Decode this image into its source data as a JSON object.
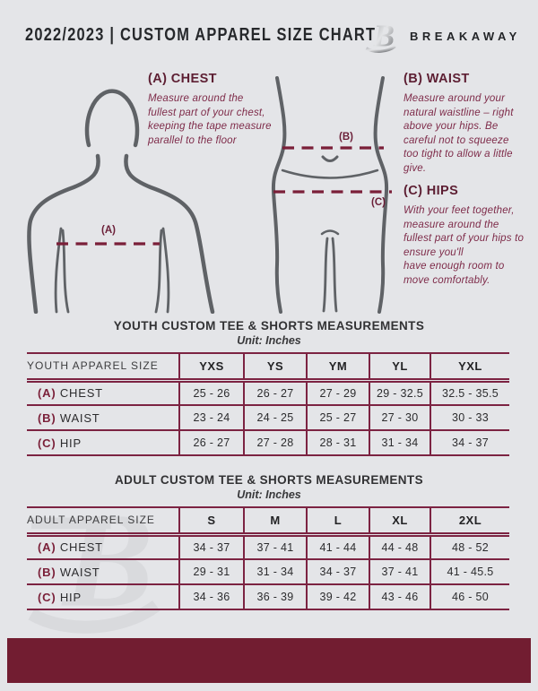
{
  "header": {
    "title": "2022/2023 | CUSTOM APPAREL SIZE CHART",
    "brand": "BREAKAWAY"
  },
  "measure_guide": {
    "chest": {
      "heading": "(A) CHEST",
      "marker": "(A)",
      "body": "Measure around the fullest part of your chest, keeping the tape measure parallel to the floor"
    },
    "waist": {
      "heading": "(B) WAIST",
      "marker": "(B)",
      "body": "Measure around your natural waistline – right above your hips. Be careful not to squeeze too tight to allow a little give."
    },
    "hips": {
      "heading": "(C) HIPS",
      "marker": "(C)",
      "body": "With your feet together, measure around the fullest part of your hips to ensure you'll\nhave enough room to move comfortably."
    }
  },
  "sections": {
    "youth": {
      "title": "YOUTH CUSTOM TEE & SHORTS MEASUREMENTS",
      "unit": "Unit: Inches",
      "header": [
        "YOUTH APPAREL SIZE",
        "YXS",
        "YS",
        "YM",
        "YL",
        "YXL"
      ],
      "rows": [
        {
          "prefix": "(A)",
          "label": "CHEST",
          "values": [
            "25 - 26",
            "26 - 27",
            "27 - 29",
            "29 - 32.5",
            "32.5 - 35.5"
          ]
        },
        {
          "prefix": "(B)",
          "label": "WAIST",
          "values": [
            "23 - 24",
            "24 - 25",
            "25 - 27",
            "27 - 30",
            "30 - 33"
          ]
        },
        {
          "prefix": "(C)",
          "label": "HIP",
          "values": [
            "26 - 27",
            "27 - 28",
            "28 - 31",
            "31 - 34",
            "34 - 37"
          ]
        }
      ]
    },
    "adult": {
      "title": "ADULT CUSTOM TEE & SHORTS MEASUREMENTS",
      "unit": "Unit: Inches",
      "header": [
        "ADULT APPAREL SIZE",
        "S",
        "M",
        "L",
        "XL",
        "2XL"
      ],
      "rows": [
        {
          "prefix": "(A)",
          "label": "CHEST",
          "values": [
            "34 - 37",
            "37 - 41",
            "41 - 44",
            "44 - 48",
            "48 - 52"
          ]
        },
        {
          "prefix": "(B)",
          "label": "WAIST",
          "values": [
            "29 - 31",
            "31 - 34",
            "34 - 37",
            "37 - 41",
            "41 - 45.5"
          ]
        },
        {
          "prefix": "(C)",
          "label": "HIP",
          "values": [
            "34 - 36",
            "36 - 39",
            "39 - 42",
            "43 - 46",
            "46 - 50"
          ]
        }
      ]
    }
  },
  "colors": {
    "maroon_footer": "#721d31",
    "table_border": "#7c2342",
    "heading_maroon": "#5d1f33",
    "body_maroon": "#7e2b49",
    "figure_gray": "#5f6266",
    "background": "#e4e5e8"
  }
}
